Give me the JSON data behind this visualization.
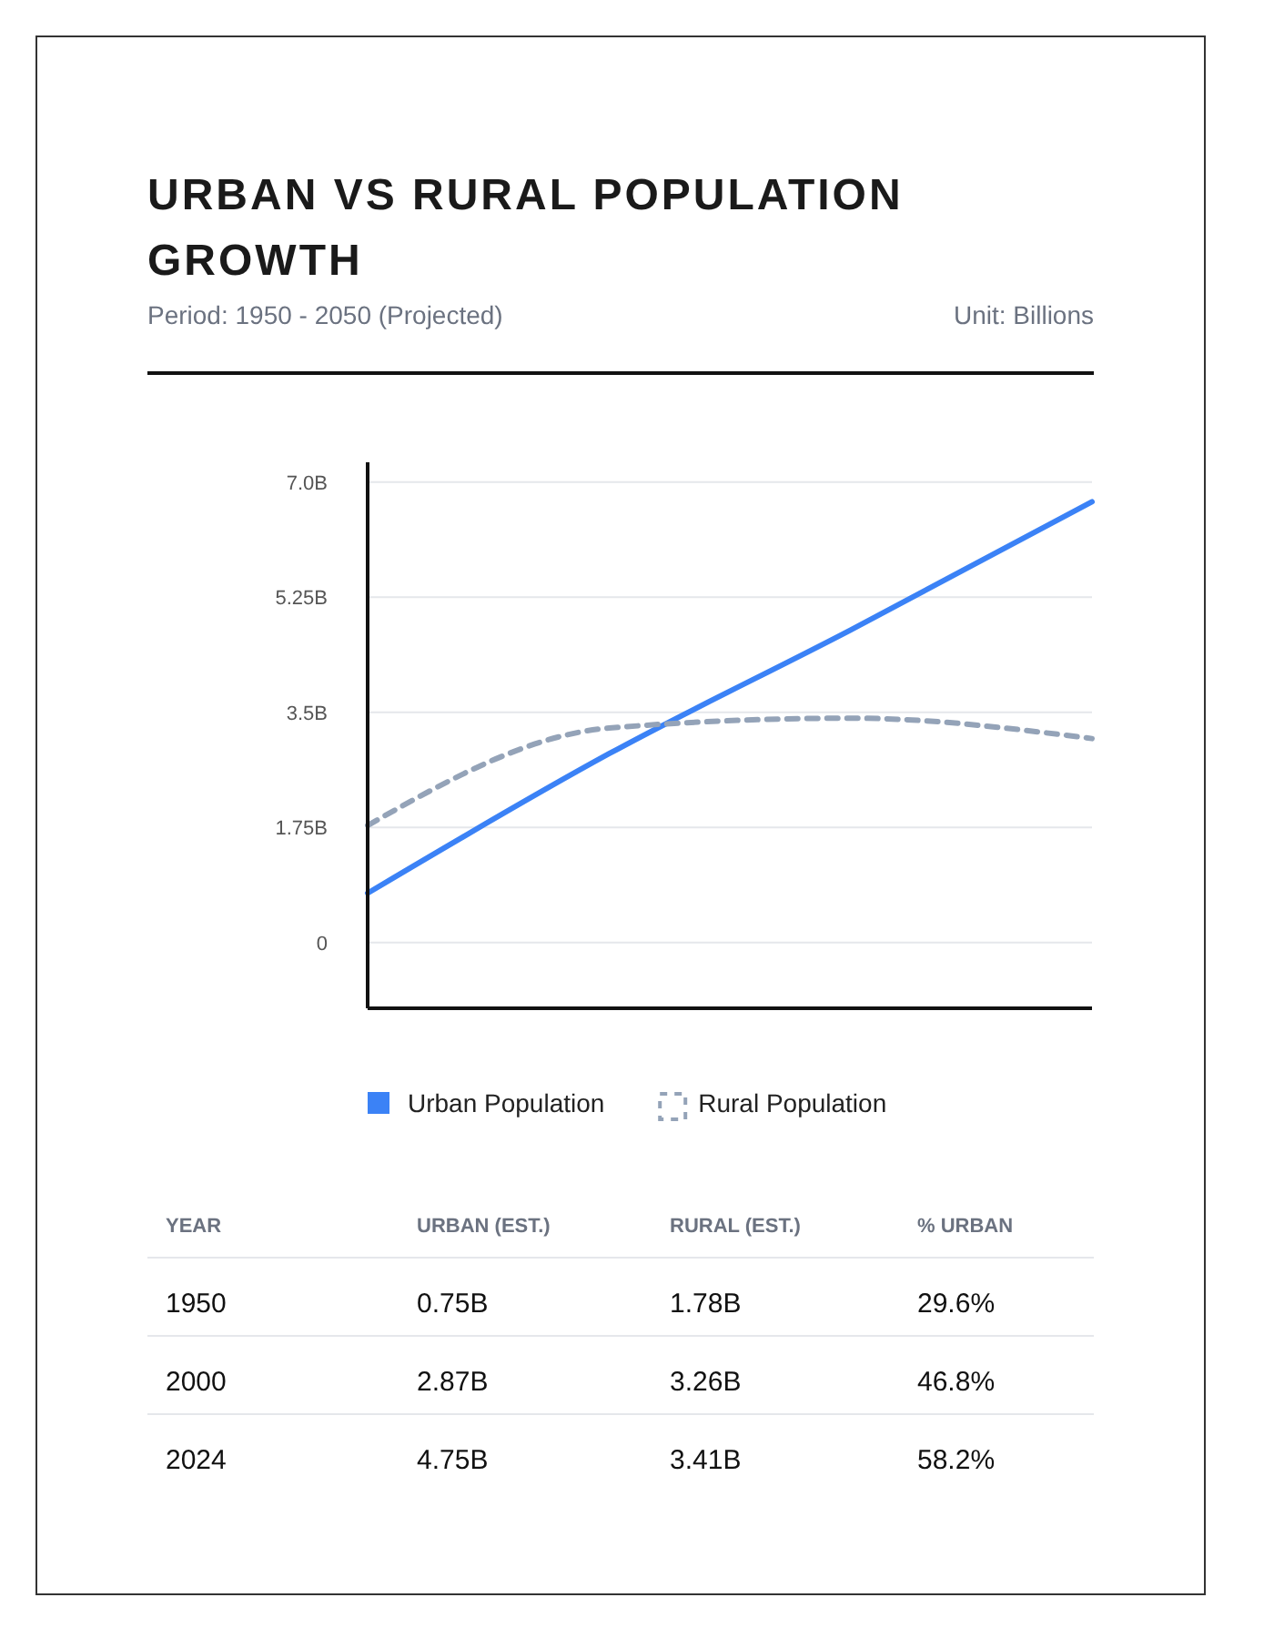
{
  "chart_data": {
    "type": "line",
    "title": "URBAN VS RURAL POPULATION GROWTH",
    "subtitle": "Period: 1950 - 2050 (Projected)",
    "annotations": [
      "Unit: Billions",
      "YEAR",
      "URBAN (EST.)",
      "RURAL (EST.)",
      "% URBAN",
      "1950",
      "0.75B",
      "1.78B",
      "29.6%",
      "2000",
      "2.87B",
      "3.26B",
      "46.8%",
      "2024",
      "4.75B",
      "3.41B",
      "58.2%"
    ],
    "categories": [
      null,
      null,
      null,
      null
    ],
    "ylim": [
      -1,
      7.3
    ],
    "yticks": [
      {
        "value": 0,
        "label": "0"
      },
      {
        "value": 1.75,
        "label": "1.75B"
      },
      {
        "value": 3.5,
        "label": "3.5B"
      },
      {
        "value": 5.25,
        "label": "5.25B"
      },
      {
        "value": 7,
        "label": "7.0B"
      }
    ],
    "grid": "y",
    "legend": "bottom",
    "marker": "none",
    "series": [
      {
        "name": "Urban Population",
        "color": "#3b82f6",
        "line_style": "solid",
        "values": [
          0.75,
          2.87,
          4.75,
          6.7
        ]
      },
      {
        "name": "Rural Population",
        "color": "#94a3b8",
        "line_style": "dashed",
        "values": [
          1.78,
          3.26,
          3.41,
          3.1
        ]
      }
    ]
  }
}
